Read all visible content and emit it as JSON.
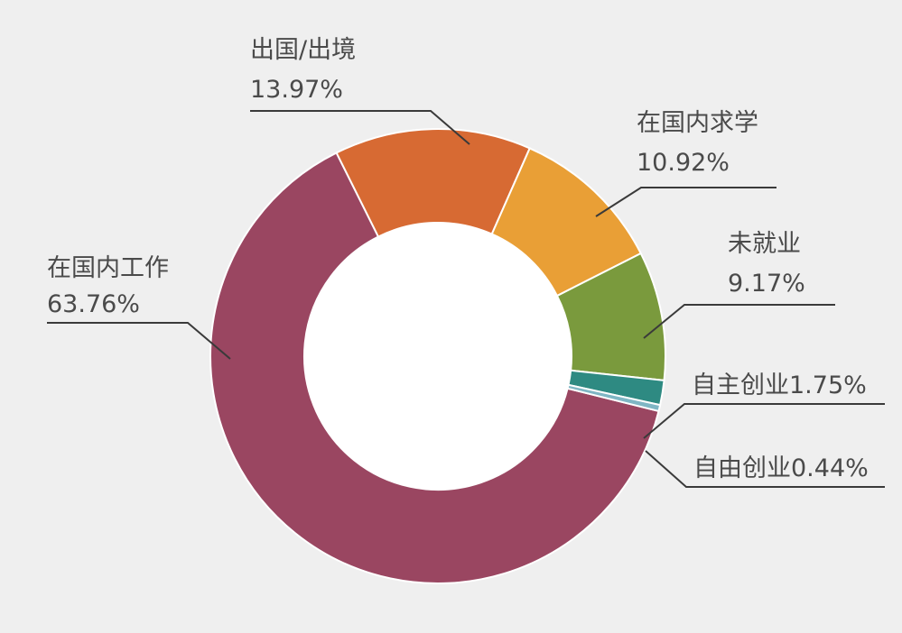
{
  "chart_data": {
    "type": "pie",
    "variant": "donut",
    "title": "",
    "categories": [
      "在国内工作",
      "出国/出境",
      "在国内求学",
      "未就业",
      "自主创业",
      "自由创业"
    ],
    "values": [
      63.76,
      13.97,
      10.92,
      9.17,
      1.75,
      0.44
    ],
    "value_labels": [
      "63.76%",
      "13.97%",
      "10.92%",
      "9.17%",
      "1.75%",
      "0.44%"
    ],
    "colors": [
      "#9a4661",
      "#d76a33",
      "#e99f36",
      "#7a9a3d",
      "#2e8a82",
      "#7fb6c4"
    ],
    "legend": "none"
  }
}
